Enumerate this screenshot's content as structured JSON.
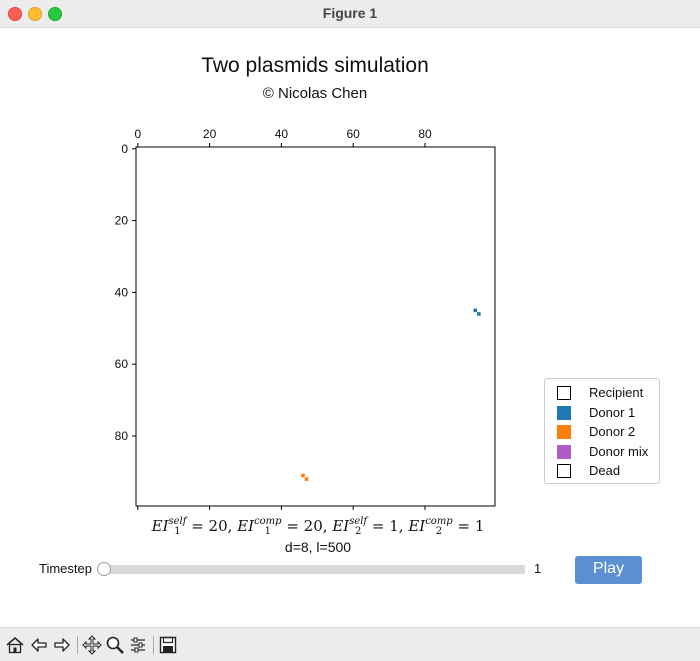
{
  "window": {
    "title": "Figure 1"
  },
  "figure": {
    "title": "Two plasmids simulation",
    "subtitle": "© Nicolas Chen",
    "params": "d=8, l=500"
  },
  "formula": {
    "prefix": "EI",
    "terms": [
      {
        "sub": "1",
        "sup": "self",
        "value": "20"
      },
      {
        "sub": "1",
        "sup": "comp",
        "value": "20"
      },
      {
        "sub": "2",
        "sup": "self",
        "value": "1"
      },
      {
        "sub": "2",
        "sup": "comp",
        "value": "1"
      }
    ]
  },
  "chart_data": {
    "type": "heatmap",
    "xticks": [
      0,
      20,
      40,
      60,
      80
    ],
    "yticks": [
      0,
      20,
      40,
      60,
      80
    ],
    "xlim": [
      -0.5,
      99.5
    ],
    "ylim": [
      99.5,
      -0.5
    ],
    "x_axis_position": "top",
    "grid": false,
    "legend_position": "right",
    "cells": [
      {
        "x": 94,
        "y": 45,
        "category": "Donor 1"
      },
      {
        "x": 95,
        "y": 46,
        "category": "Donor 1"
      },
      {
        "x": 46,
        "y": 91,
        "category": "Donor 2"
      },
      {
        "x": 47,
        "y": 92,
        "category": "Donor 2"
      }
    ]
  },
  "legend": {
    "items": [
      {
        "label": "Recipient",
        "color": "#ffffff"
      },
      {
        "label": "Donor 1",
        "color": "#1f77b4"
      },
      {
        "label": "Donor 2",
        "color": "#ff7f0e"
      },
      {
        "label": "Donor mix",
        "color": "#b05cc8"
      },
      {
        "label": "Dead",
        "color": "#ffffff"
      }
    ]
  },
  "slider": {
    "label": "Timestep",
    "value": "1",
    "fraction": 0
  },
  "play_button": {
    "label": "Play"
  },
  "toolbar": {
    "buttons": [
      "home-icon",
      "back-arrow-icon",
      "forward-arrow-icon",
      "pan-icon",
      "zoom-icon",
      "configure-subplots-icon",
      "save-icon"
    ]
  }
}
